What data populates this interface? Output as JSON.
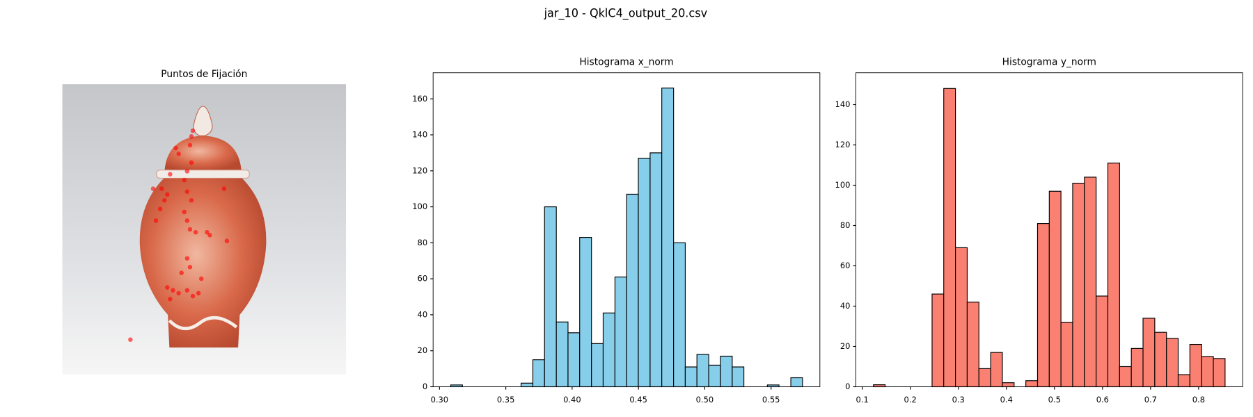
{
  "figure_title": "jar_10 - QklC4_output_20.csv",
  "chart_data": [
    {
      "type": "scatter",
      "title": "Puntos de Fijación",
      "color": "#ff0000",
      "xlim": [
        0,
        1
      ],
      "ylim": [
        1,
        0
      ],
      "x": [
        0.46,
        0.455,
        0.45,
        0.4,
        0.41,
        0.455,
        0.44,
        0.38,
        0.43,
        0.35,
        0.37,
        0.36,
        0.345,
        0.44,
        0.455,
        0.43,
        0.44,
        0.45,
        0.47,
        0.51,
        0.52,
        0.58,
        0.33,
        0.44,
        0.45,
        0.42,
        0.37,
        0.39,
        0.41,
        0.44,
        0.46,
        0.48,
        0.49,
        0.38,
        0.57,
        0.32,
        0.24
      ],
      "values": [
        0.16,
        0.18,
        0.21,
        0.22,
        0.24,
        0.27,
        0.3,
        0.31,
        0.33,
        0.36,
        0.38,
        0.4,
        0.43,
        0.37,
        0.4,
        0.44,
        0.47,
        0.5,
        0.51,
        0.51,
        0.52,
        0.54,
        0.47,
        0.6,
        0.63,
        0.65,
        0.7,
        0.71,
        0.72,
        0.71,
        0.73,
        0.72,
        0.67,
        0.74,
        0.36,
        0.36,
        0.88
      ]
    },
    {
      "type": "histogram",
      "title": "Histograma x_norm",
      "color": "#87ceeb",
      "edgecolor": "#000000",
      "bins": [
        0.3085,
        0.3173,
        0.3262,
        0.335,
        0.3439,
        0.3527,
        0.3615,
        0.3704,
        0.3792,
        0.3881,
        0.3969,
        0.4057,
        0.4146,
        0.4234,
        0.4323,
        0.4411,
        0.4499,
        0.4588,
        0.4676,
        0.4765,
        0.4853,
        0.4941,
        0.503,
        0.5118,
        0.5207,
        0.5295,
        0.5383,
        0.5472,
        0.556,
        0.5649,
        0.5737
      ],
      "values": [
        1,
        0,
        0,
        0,
        0,
        0,
        2,
        15,
        100,
        36,
        30,
        83,
        24,
        41,
        61,
        107,
        127,
        130,
        166,
        80,
        11,
        18,
        12,
        17,
        11,
        0,
        0,
        1,
        0,
        5
      ],
      "xlim": [
        0.2952,
        0.5868
      ],
      "xticks": [
        {
          "value": 0.3,
          "label": "0.30"
        },
        0.35,
        {
          "value": 0.4,
          "label": "0.40"
        },
        0.45,
        {
          "value": 0.5,
          "label": "0.50"
        },
        0.55
      ],
      "ylim": [
        0,
        174.5
      ],
      "yticks": [
        0,
        20,
        40,
        60,
        80,
        100,
        120,
        140,
        160
      ]
    },
    {
      "type": "histogram",
      "title": "Histograma y_norm",
      "color": "#fa8072",
      "edgecolor": "#000000",
      "bins": [
        0.1233,
        0.1477,
        0.1721,
        0.1965,
        0.2209,
        0.2453,
        0.2696,
        0.294,
        0.3184,
        0.3428,
        0.3672,
        0.3916,
        0.416,
        0.4404,
        0.4648,
        0.4892,
        0.5135,
        0.5379,
        0.5623,
        0.5867,
        0.6111,
        0.6355,
        0.6599,
        0.6843,
        0.7087,
        0.7331,
        0.7574,
        0.7818,
        0.8062,
        0.8306,
        0.855
      ],
      "values": [
        1,
        0,
        0,
        0,
        0,
        46,
        148,
        69,
        42,
        9,
        17,
        2,
        0,
        3,
        81,
        97,
        32,
        101,
        104,
        45,
        111,
        10,
        19,
        34,
        27,
        24,
        6,
        21,
        15,
        14
      ],
      "xlim": [
        0.0867,
        0.8915
      ],
      "xticks": [
        0.1,
        0.2,
        0.3,
        0.4,
        0.5,
        0.6,
        0.7,
        0.8
      ],
      "ylim": [
        0,
        155.8
      ],
      "yticks": [
        0,
        20,
        40,
        60,
        80,
        100,
        120,
        140
      ]
    }
  ]
}
